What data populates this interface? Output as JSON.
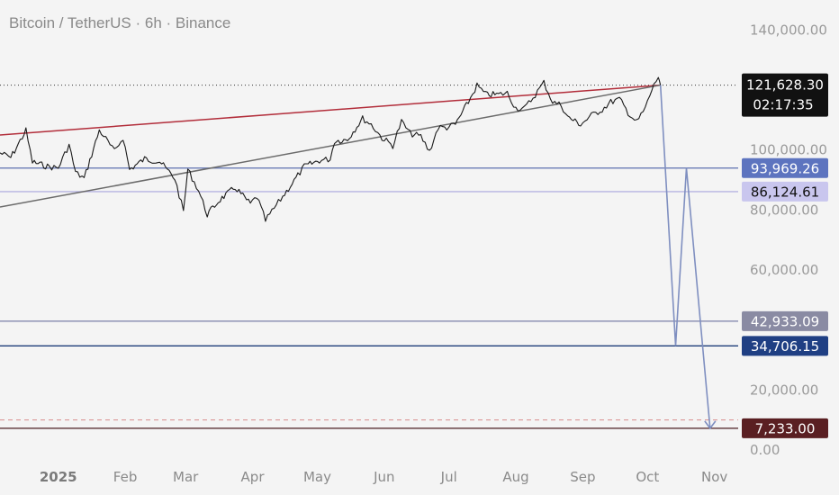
{
  "title": "Bitcoin / TetherUS · 6h · Binance",
  "chart_data": {
    "type": "candlestick",
    "symbol": "Bitcoin / TetherUS",
    "interval": "6h",
    "exchange": "Binance",
    "ylim": [
      0,
      150000
    ],
    "xlim": [
      "2024-12-05",
      "2025-11-12"
    ],
    "y_ticks": [
      {
        "value": 140000,
        "label": "140,000.00"
      },
      {
        "value": 100000,
        "label": "100,000.00"
      },
      {
        "value": 80000,
        "label": "80,000.00"
      },
      {
        "value": 60000,
        "label": "60,000.00"
      },
      {
        "value": 20000,
        "label": "20,000.00"
      },
      {
        "value": 0,
        "label": "0.00"
      }
    ],
    "x_ticks": [
      {
        "date": "2025-01-01",
        "label": "2025",
        "bold": true
      },
      {
        "date": "2025-02-01",
        "label": "Feb"
      },
      {
        "date": "2025-03-01",
        "label": "Mar"
      },
      {
        "date": "2025-04-01",
        "label": "Apr"
      },
      {
        "date": "2025-05-01",
        "label": "May"
      },
      {
        "date": "2025-06-01",
        "label": "Jun"
      },
      {
        "date": "2025-07-01",
        "label": "Jul"
      },
      {
        "date": "2025-08-01",
        "label": "Aug"
      },
      {
        "date": "2025-09-01",
        "label": "Sep"
      },
      {
        "date": "2025-10-01",
        "label": "Oct"
      },
      {
        "date": "2025-11-01",
        "label": "Nov"
      }
    ],
    "price_series": [
      [
        "2024-12-05",
        99000
      ],
      [
        "2024-12-10",
        97500
      ],
      [
        "2024-12-17",
        106500
      ],
      [
        "2024-12-20",
        96000
      ],
      [
        "2024-12-27",
        94500
      ],
      [
        "2025-01-01",
        94000
      ],
      [
        "2025-01-06",
        101800
      ],
      [
        "2025-01-09",
        92500
      ],
      [
        "2025-01-13",
        90500
      ],
      [
        "2025-01-20",
        106500
      ],
      [
        "2025-01-22",
        104800
      ],
      [
        "2025-01-27",
        99500
      ],
      [
        "2025-01-31",
        104200
      ],
      [
        "2025-02-03",
        93500
      ],
      [
        "2025-02-10",
        97000
      ],
      [
        "2025-02-17",
        96200
      ],
      [
        "2025-02-24",
        90500
      ],
      [
        "2025-02-28",
        79500
      ],
      [
        "2025-03-02",
        93500
      ],
      [
        "2025-03-07",
        86500
      ],
      [
        "2025-03-11",
        78500
      ],
      [
        "2025-03-17",
        83500
      ],
      [
        "2025-03-24",
        87500
      ],
      [
        "2025-03-31",
        82000
      ],
      [
        "2025-04-03",
        84500
      ],
      [
        "2025-04-07",
        76500
      ],
      [
        "2025-04-10",
        79500
      ],
      [
        "2025-04-15",
        84500
      ],
      [
        "2025-04-22",
        91500
      ],
      [
        "2025-04-25",
        94500
      ],
      [
        "2025-05-02",
        96500
      ],
      [
        "2025-05-07",
        97000
      ],
      [
        "2025-05-09",
        103000
      ],
      [
        "2025-05-15",
        103500
      ],
      [
        "2025-05-22",
        110500
      ],
      [
        "2025-05-26",
        108500
      ],
      [
        "2025-05-31",
        104000
      ],
      [
        "2025-06-05",
        101500
      ],
      [
        "2025-06-09",
        109500
      ],
      [
        "2025-06-13",
        105500
      ],
      [
        "2025-06-18",
        104500
      ],
      [
        "2025-06-22",
        99500
      ],
      [
        "2025-06-26",
        107500
      ],
      [
        "2025-06-30",
        107500
      ],
      [
        "2025-07-04",
        108500
      ],
      [
        "2025-07-10",
        116000
      ],
      [
        "2025-07-14",
        121500
      ],
      [
        "2025-07-18",
        118500
      ],
      [
        "2025-07-24",
        118500
      ],
      [
        "2025-07-28",
        119000
      ],
      [
        "2025-08-01",
        114000
      ],
      [
        "2025-08-05",
        113800
      ],
      [
        "2025-08-09",
        117500
      ],
      [
        "2025-08-14",
        122500
      ],
      [
        "2025-08-18",
        116000
      ],
      [
        "2025-08-22",
        115000
      ],
      [
        "2025-08-25",
        111000
      ],
      [
        "2025-08-31",
        108500
      ],
      [
        "2025-09-05",
        111500
      ],
      [
        "2025-09-10",
        113500
      ],
      [
        "2025-09-14",
        116000
      ],
      [
        "2025-09-18",
        117000
      ],
      [
        "2025-09-22",
        112500
      ],
      [
        "2025-09-26",
        109200
      ],
      [
        "2025-09-30",
        114000
      ],
      [
        "2025-10-03",
        120000
      ],
      [
        "2025-10-06",
        124500
      ],
      [
        "2025-10-07",
        121628.3
      ]
    ],
    "trendlines": [
      {
        "color": "#b22d3a",
        "from": [
          "2024-12-05",
          105000
        ],
        "to": [
          "2025-10-07",
          121628.3
        ]
      },
      {
        "color": "#6b6b6b",
        "from": [
          "2024-12-05",
          81000
        ],
        "to": [
          "2025-10-07",
          121628.3
        ]
      }
    ],
    "projection_path": [
      [
        "2025-10-07",
        121628.3
      ],
      [
        "2025-10-14",
        34706.15
      ],
      [
        "2025-10-19",
        93969.26
      ],
      [
        "2025-10-30",
        7233.0
      ]
    ],
    "horizontal_levels": [
      {
        "value": 93969.26,
        "label": "93,969.26",
        "line_color": "#5c70b0",
        "tag_bg": "#5d74bf",
        "tag_text": "white"
      },
      {
        "value": 86124.61,
        "label": "86,124.61",
        "line_color": "#b7b4e2",
        "tag_bg": "#c9c6ee",
        "tag_text": "dark"
      },
      {
        "value": 42933.09,
        "label": "42,933.09",
        "line_color": "#7b7fa8",
        "tag_bg": "#8a8ba3",
        "tag_text": "white"
      },
      {
        "value": 34706.15,
        "label": "34,706.15",
        "line_color": "#1e3d7a",
        "tag_bg": "#1f3f83",
        "tag_text": "white"
      },
      {
        "value": 7233.0,
        "label": "7,233.00",
        "line_color": "#4a1c20",
        "tag_bg": "#5a1f22",
        "tag_text": "white"
      }
    ],
    "dashed_level": {
      "value": 10000,
      "color": "#d88a8a"
    },
    "last_price": {
      "value": 121628.3,
      "label": "121,628.30",
      "countdown": "02:17:35",
      "tag_bg": "#111111"
    }
  }
}
